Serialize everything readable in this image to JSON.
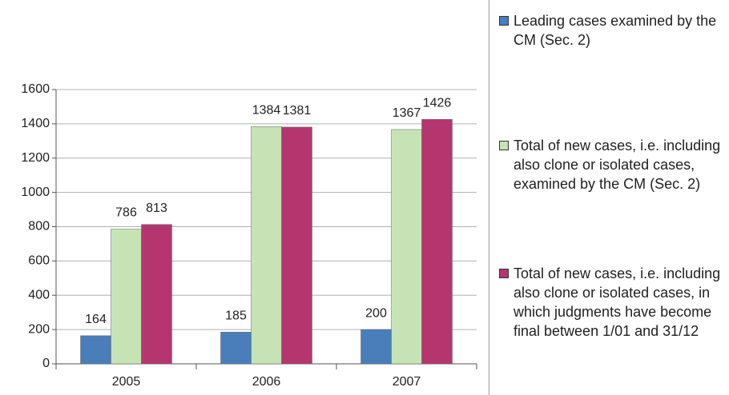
{
  "chart_data": {
    "type": "bar",
    "categories": [
      "2005",
      "2006",
      "2007"
    ],
    "series": [
      {
        "name": "Leading cases examined by the CM (Sec. 2)",
        "color": "#4a7ebb",
        "values": [
          164,
          185,
          200
        ]
      },
      {
        "name": "Total of new cases, i.e. including also clone or isolated cases, examined by the CM (Sec. 2)",
        "color": "#c6e3b5",
        "values": [
          786,
          1384,
          1367
        ]
      },
      {
        "name": "Total of new cases, i.e. including also clone or isolated cases, in which judgments have become final between 1/01 and 31/12",
        "color": "#b5366f",
        "values": [
          813,
          1381,
          1426
        ]
      }
    ],
    "ylim": [
      0,
      1600
    ],
    "yticks": [
      0,
      200,
      400,
      600,
      800,
      1000,
      1200,
      1400,
      1600
    ],
    "grid": true,
    "legend": "right"
  }
}
